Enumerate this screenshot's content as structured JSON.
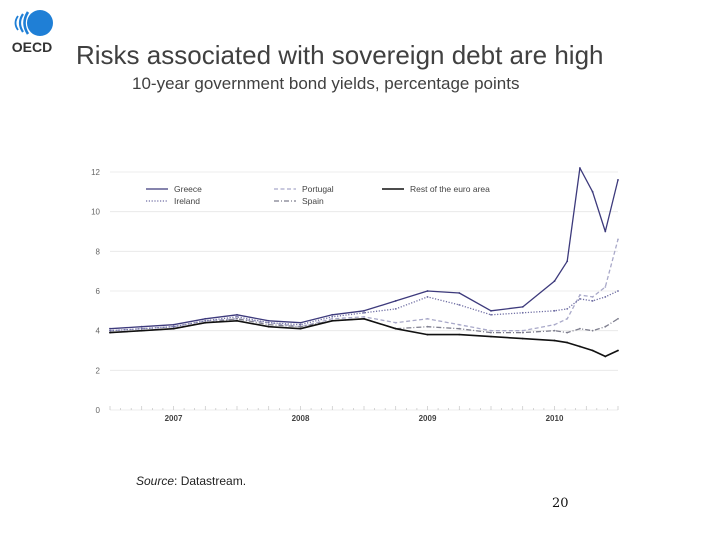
{
  "header": {
    "logo_text": "OECD",
    "title": "Risks associated with sovereign debt are high",
    "subtitle": "10-year government bond yields, percentage points"
  },
  "footer": {
    "source_label": "Source",
    "source_text": ": Datastream.",
    "page_number": "20"
  },
  "colors": {
    "logo_blue": "#1f7fd6",
    "greece": "#3d3a7c",
    "portugal": "#a9a9c9",
    "ireland": "#6f6ea3",
    "spain": "#7e7e8e",
    "rest": "#111111",
    "grid": "#e6e6e6"
  },
  "chart_data": {
    "type": "line",
    "title": "",
    "xlabel": "",
    "ylabel": "",
    "ylim": [
      0,
      12
    ],
    "yticks": [
      "0",
      "2",
      "4",
      "6",
      "8",
      "10",
      "12"
    ],
    "xticks": [
      "2007",
      "2008",
      "2009",
      "2010"
    ],
    "grid": true,
    "legend_position": "top",
    "x": [
      2006.5,
      2006.75,
      2007.0,
      2007.25,
      2007.5,
      2007.75,
      2008.0,
      2008.25,
      2008.5,
      2008.75,
      2009.0,
      2009.25,
      2009.5,
      2009.75,
      2010.0,
      2010.1,
      2010.2,
      2010.3,
      2010.4,
      2010.5
    ],
    "series": [
      {
        "name": "Greece",
        "style": "solid",
        "values": [
          4.1,
          4.2,
          4.3,
          4.6,
          4.8,
          4.5,
          4.4,
          4.8,
          5.0,
          5.5,
          6.0,
          5.9,
          5.0,
          5.2,
          6.5,
          7.5,
          12.2,
          11.0,
          9.0,
          11.6
        ]
      },
      {
        "name": "Ireland",
        "style": "dotted",
        "values": [
          4.0,
          4.1,
          4.2,
          4.5,
          4.7,
          4.4,
          4.3,
          4.7,
          4.9,
          5.1,
          5.7,
          5.3,
          4.8,
          4.9,
          5.0,
          5.1,
          5.6,
          5.5,
          5.7,
          6.0
        ]
      },
      {
        "name": "Portugal",
        "style": "dashed",
        "values": [
          4.0,
          4.1,
          4.2,
          4.5,
          4.6,
          4.4,
          4.2,
          4.6,
          4.7,
          4.4,
          4.6,
          4.3,
          4.0,
          4.0,
          4.3,
          4.6,
          5.8,
          5.7,
          6.2,
          8.6
        ]
      },
      {
        "name": "Spain",
        "style": "dashdot",
        "values": [
          3.9,
          4.0,
          4.1,
          4.4,
          4.6,
          4.3,
          4.2,
          4.5,
          4.6,
          4.1,
          4.2,
          4.1,
          3.9,
          3.9,
          4.0,
          3.9,
          4.1,
          4.0,
          4.2,
          4.6
        ]
      },
      {
        "name": "Rest of the euro area",
        "style": "solid-thick",
        "values": [
          3.9,
          4.0,
          4.1,
          4.4,
          4.5,
          4.2,
          4.1,
          4.5,
          4.6,
          4.1,
          3.8,
          3.8,
          3.7,
          3.6,
          3.5,
          3.4,
          3.2,
          3.0,
          2.7,
          3.0
        ]
      }
    ]
  }
}
